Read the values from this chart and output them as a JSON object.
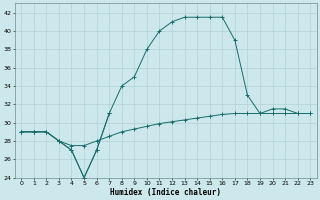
{
  "xlabel": "Humidex (Indice chaleur)",
  "bg_color": "#cce8ec",
  "grid_color": "#aaccd0",
  "line_color": "#1a6b6b",
  "xlim": [
    -0.5,
    23.5
  ],
  "ylim": [
    24,
    43
  ],
  "xticks": [
    0,
    1,
    2,
    3,
    4,
    5,
    6,
    7,
    8,
    9,
    10,
    11,
    12,
    13,
    14,
    15,
    16,
    17,
    18,
    19,
    20,
    21,
    22,
    23
  ],
  "yticks": [
    24,
    26,
    28,
    30,
    32,
    34,
    36,
    38,
    40,
    42
  ],
  "main_x": [
    0,
    1,
    2,
    3,
    4,
    5,
    6,
    7,
    8,
    9,
    10,
    11,
    12,
    13,
    14,
    15,
    16,
    17,
    18,
    19,
    20,
    21,
    22,
    23
  ],
  "main_y": [
    29,
    29,
    29,
    28,
    27,
    24,
    27,
    31,
    34,
    35,
    38,
    40,
    41,
    41.5,
    41.5,
    41.5,
    41.5,
    39,
    33,
    31,
    31.5,
    31.5,
    31,
    31
  ],
  "diag_x": [
    0,
    1,
    2,
    3,
    4,
    5,
    6,
    7,
    8,
    9,
    10,
    11,
    12,
    13,
    14,
    15,
    16,
    17,
    18,
    19,
    20,
    21,
    22,
    23
  ],
  "diag_y": [
    29,
    29,
    29,
    28,
    27.5,
    27.5,
    28,
    28.5,
    29,
    29.3,
    29.6,
    29.9,
    30.1,
    30.3,
    30.5,
    30.7,
    30.9,
    31,
    31,
    31,
    31,
    31,
    31,
    31
  ],
  "dip_x": [
    0,
    1,
    2,
    3,
    4,
    5,
    6,
    7
  ],
  "dip_y": [
    29,
    29,
    29,
    28,
    27,
    24,
    27,
    31
  ]
}
